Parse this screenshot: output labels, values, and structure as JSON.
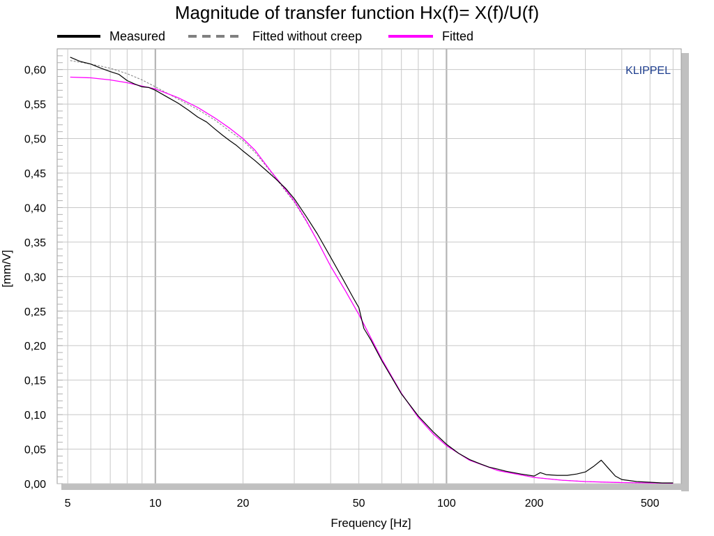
{
  "chart_data": {
    "type": "line",
    "title": "Magnitude of transfer function Hx(f)= X(f)/U(f)",
    "xlabel": "Frequency [Hz]",
    "ylabel": "[mm/V]",
    "xscale": "log",
    "xlim": [
      4.6,
      640
    ],
    "ylim": [
      0,
      0.63
    ],
    "x_ticks": [
      5,
      10,
      20,
      50,
      100,
      200,
      500
    ],
    "x_tick_labels": [
      "5",
      "10",
      "20",
      "50",
      "100",
      "200",
      "500"
    ],
    "y_ticks": [
      0,
      0.05,
      0.1,
      0.15,
      0.2,
      0.25,
      0.3,
      0.35,
      0.4,
      0.45,
      0.5,
      0.55,
      0.6
    ],
    "y_tick_labels": [
      "0,00",
      "0,05",
      "0,10",
      "0,15",
      "0,20",
      "0,25",
      "0,30",
      "0,35",
      "0,40",
      "0,45",
      "0,50",
      "0,55",
      "0,60"
    ],
    "grid": true,
    "legend_position": "top",
    "watermark": "KLIPPEL",
    "colors": {
      "measured": "#000000",
      "fitted_without_creep": "#808080",
      "fitted": "#ff00ff",
      "watermark": "#1f3f8f",
      "grid": "#c8c8c8",
      "grid_major": "#b4b4b4"
    },
    "series": [
      {
        "name": "Measured",
        "style": "solid",
        "x": [
          5.1,
          5.5,
          6,
          6.5,
          7,
          7.5,
          8,
          8.5,
          9,
          9.5,
          10,
          11,
          12,
          13,
          14,
          15,
          16,
          17,
          18,
          19,
          20,
          22,
          24,
          26,
          28,
          30,
          33,
          36,
          40,
          44,
          48,
          50,
          52,
          55,
          60,
          65,
          70,
          80,
          90,
          100,
          110,
          120,
          130,
          140,
          150,
          160,
          180,
          200,
          210,
          220,
          240,
          260,
          280,
          300,
          320,
          340,
          360,
          380,
          400,
          450,
          500,
          550,
          600
        ],
        "y": [
          0.618,
          0.612,
          0.608,
          0.602,
          0.597,
          0.593,
          0.584,
          0.579,
          0.575,
          0.574,
          0.57,
          0.56,
          0.551,
          0.541,
          0.531,
          0.524,
          0.514,
          0.505,
          0.497,
          0.49,
          0.482,
          0.468,
          0.454,
          0.441,
          0.428,
          0.413,
          0.387,
          0.362,
          0.328,
          0.297,
          0.268,
          0.255,
          0.225,
          0.208,
          0.178,
          0.153,
          0.13,
          0.098,
          0.075,
          0.057,
          0.044,
          0.035,
          0.029,
          0.024,
          0.021,
          0.018,
          0.014,
          0.011,
          0.016,
          0.013,
          0.012,
          0.012,
          0.014,
          0.017,
          0.025,
          0.034,
          0.022,
          0.011,
          0.006,
          0.003,
          0.002,
          0.001,
          0.001
        ]
      },
      {
        "name": "Fitted without creep",
        "style": "dashed",
        "x": [
          5.1,
          6,
          7,
          8,
          9,
          10,
          12,
          14,
          16,
          18,
          20,
          22,
          25,
          28,
          30,
          33,
          36,
          40,
          45,
          50,
          55,
          60,
          70,
          80,
          90,
          100,
          120,
          150,
          200,
          250,
          300,
          400,
          500,
          600
        ],
        "y": [
          0.613,
          0.608,
          0.602,
          0.594,
          0.585,
          0.575,
          0.557,
          0.542,
          0.527,
          0.511,
          0.497,
          0.48,
          0.451,
          0.424,
          0.408,
          0.38,
          0.352,
          0.315,
          0.279,
          0.245,
          0.211,
          0.18,
          0.131,
          0.096,
          0.072,
          0.055,
          0.034,
          0.019,
          0.009,
          0.005,
          0.003,
          0.0015,
          0.001,
          0.0005
        ]
      },
      {
        "name": "Fitted",
        "style": "solid",
        "x": [
          5.1,
          6,
          7,
          8,
          9,
          10,
          12,
          14,
          16,
          18,
          20,
          22,
          25,
          28,
          30,
          33,
          36,
          40,
          45,
          50,
          55,
          60,
          70,
          80,
          90,
          100,
          120,
          150,
          200,
          250,
          300,
          400,
          500,
          600
        ],
        "y": [
          0.589,
          0.588,
          0.585,
          0.581,
          0.576,
          0.572,
          0.559,
          0.545,
          0.53,
          0.515,
          0.5,
          0.483,
          0.452,
          0.426,
          0.41,
          0.381,
          0.352,
          0.315,
          0.279,
          0.245,
          0.211,
          0.18,
          0.131,
          0.096,
          0.072,
          0.055,
          0.034,
          0.019,
          0.009,
          0.005,
          0.003,
          0.0015,
          0.001,
          0.0005
        ]
      }
    ]
  }
}
